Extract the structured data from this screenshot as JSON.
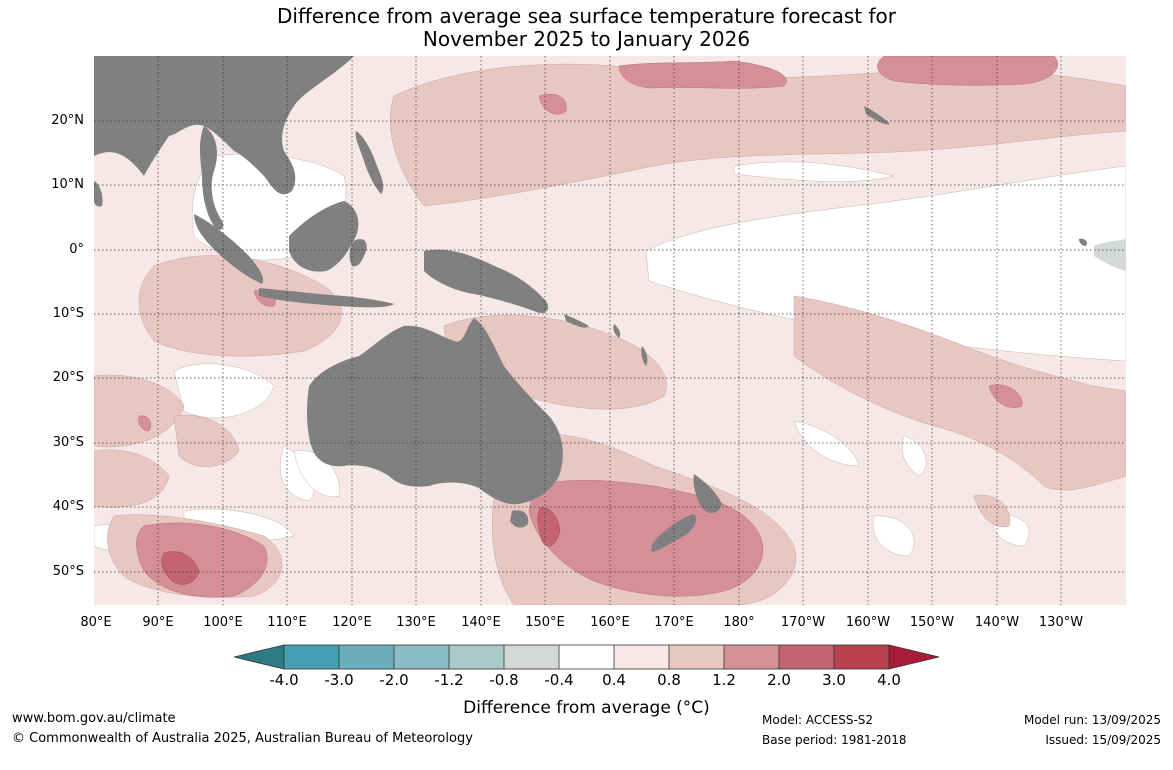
{
  "title": {
    "line1": "Difference from average sea surface temperature forecast for",
    "line2": "November 2025 to January 2026"
  },
  "map": {
    "latitudes": [
      "20°N",
      "10°N",
      "0°",
      "10°S",
      "20°S",
      "30°S",
      "40°S",
      "50°S"
    ],
    "longitudes": [
      "80°E",
      "90°E",
      "100°E",
      "110°E",
      "120°E",
      "130°E",
      "140°E",
      "150°E",
      "160°E",
      "170°E",
      "180°",
      "170°W",
      "160°W",
      "150°W",
      "140°W",
      "130°W"
    ],
    "land_color": "#808080",
    "grid_style": "dotted"
  },
  "legend": {
    "ticks": [
      "-4.0",
      "-3.0",
      "-2.0",
      "-1.2",
      "-0.8",
      "-0.4",
      "0.4",
      "0.8",
      "1.2",
      "2.0",
      "3.0",
      "4.0"
    ],
    "colors": [
      "#2d7b87",
      "#44a0b2",
      "#69aeba",
      "#8bbcc3",
      "#a9c9cb",
      "#d5d8d8",
      "#ffffff",
      "#f5e8e6",
      "#e8c6c2",
      "#d58f97",
      "#c3646f",
      "#bb4150",
      "#a81c38"
    ],
    "label": "Difference from average (°C)"
  },
  "footer": {
    "website": "www.bom.gov.au/climate",
    "copyright": "© Commonwealth of Australia 2025, Australian Bureau of Meteorology",
    "model": "Model: ACCESS-S2",
    "base_period": "Base period: 1981-2018",
    "model_run": "Model run: 13/09/2025",
    "issued": "Issued: 15/09/2025"
  }
}
